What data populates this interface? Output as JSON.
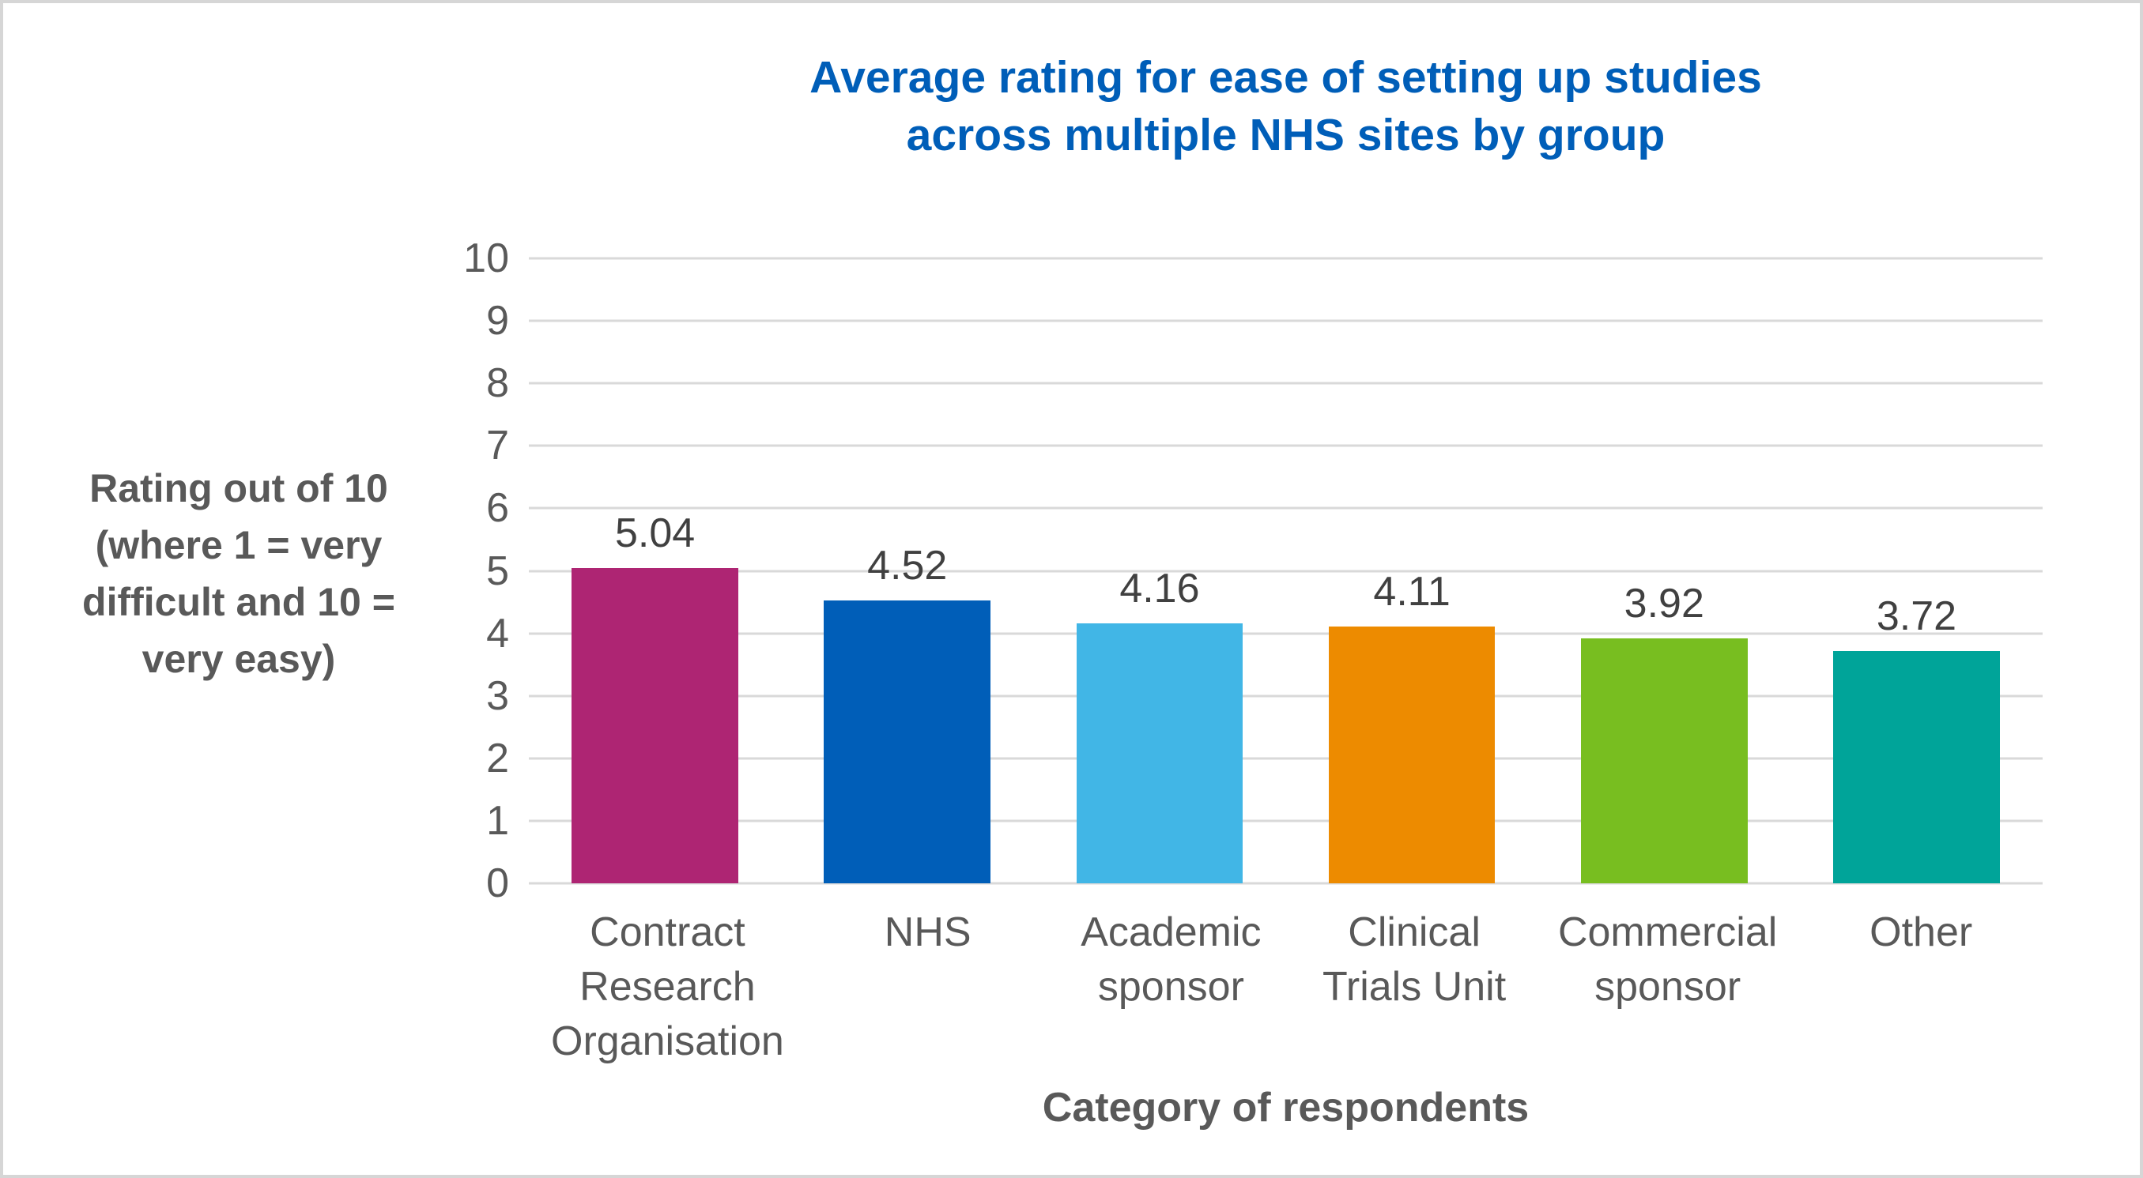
{
  "page": {
    "background_color": "#ffffff",
    "border_color": "#d6d6d6"
  },
  "text_colors": {
    "title": "#005EB8",
    "axis_titles": "#595959",
    "tick_labels": "#595959",
    "value_labels": "#404040",
    "gridline": "#d9d9d9"
  },
  "chart_data": {
    "type": "bar",
    "title": "Average rating for ease of setting up studies across multiple NHS sites by group",
    "title_lines": [
      "Average rating for ease of setting up studies",
      "across multiple NHS sites by group"
    ],
    "xlabel": "Category of respondents",
    "ylabel": "Rating out of 10 (where 1 = very difficult and 10 = very easy)",
    "categories": [
      "Contract Research Organisation",
      "NHS",
      "Academic sponsor",
      "Clinical Trials Unit",
      "Commercial sponsor",
      "Other"
    ],
    "values": [
      5.04,
      4.52,
      4.16,
      4.11,
      3.92,
      3.72
    ],
    "value_labels": [
      "5.04",
      "4.52",
      "4.16",
      "4.11",
      "3.92",
      "3.72"
    ],
    "bar_colors": [
      "#AE2573",
      "#005EB8",
      "#41B6E6",
      "#ED8B00",
      "#78BE20",
      "#00A499"
    ],
    "ylim": [
      0,
      10
    ],
    "yticks": [
      0,
      1,
      2,
      3,
      4,
      5,
      6,
      7,
      8,
      9,
      10
    ],
    "grid": "horizontal",
    "legend": "none"
  }
}
